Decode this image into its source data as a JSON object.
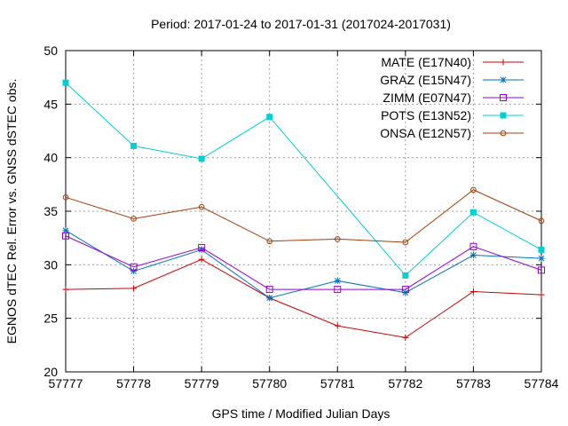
{
  "chart_data": {
    "type": "line",
    "title": "Period: 2017-01-24 to 2017-01-31 (2017024-2017031)",
    "xlabel": "GPS time / Modified Julian Days",
    "ylabel": "EGNOS dTEC Rel. Error vs. GNSS dSTEC obs.",
    "x": [
      57777,
      57778,
      57779,
      57780,
      57781,
      57782,
      57783,
      57784
    ],
    "xlim": [
      57777,
      57784
    ],
    "ylim": [
      20,
      50
    ],
    "yticks": [
      20,
      25,
      30,
      35,
      40,
      45,
      50
    ],
    "grid": true,
    "legend_position": "top-right",
    "series": [
      {
        "name": "MATE (E17N40)",
        "color": "#cc0000",
        "marker": "plus",
        "values": [
          27.7,
          27.8,
          30.5,
          26.9,
          24.3,
          23.2,
          27.5,
          27.2
        ]
      },
      {
        "name": "GRAZ (E15N47)",
        "color": "#0072bd",
        "marker": "star",
        "values": [
          33.2,
          29.4,
          31.4,
          26.9,
          28.5,
          27.4,
          30.9,
          30.6
        ]
      },
      {
        "name": "ZIMM (E07N47)",
        "color": "#9400d3",
        "marker": "open-square",
        "values": [
          32.7,
          29.8,
          31.6,
          27.7,
          27.7,
          27.7,
          31.7,
          29.5
        ]
      },
      {
        "name": "POTS (E13N52)",
        "color": "#00d0d0",
        "marker": "filled-square",
        "values": [
          47.0,
          41.1,
          39.9,
          43.8,
          null,
          29.0,
          34.9,
          31.4
        ]
      },
      {
        "name": "ONSA (E12N57)",
        "color": "#a0400a",
        "marker": "open-circle",
        "values": [
          36.3,
          34.3,
          35.4,
          32.2,
          32.4,
          32.1,
          37.0,
          34.1
        ]
      }
    ]
  }
}
